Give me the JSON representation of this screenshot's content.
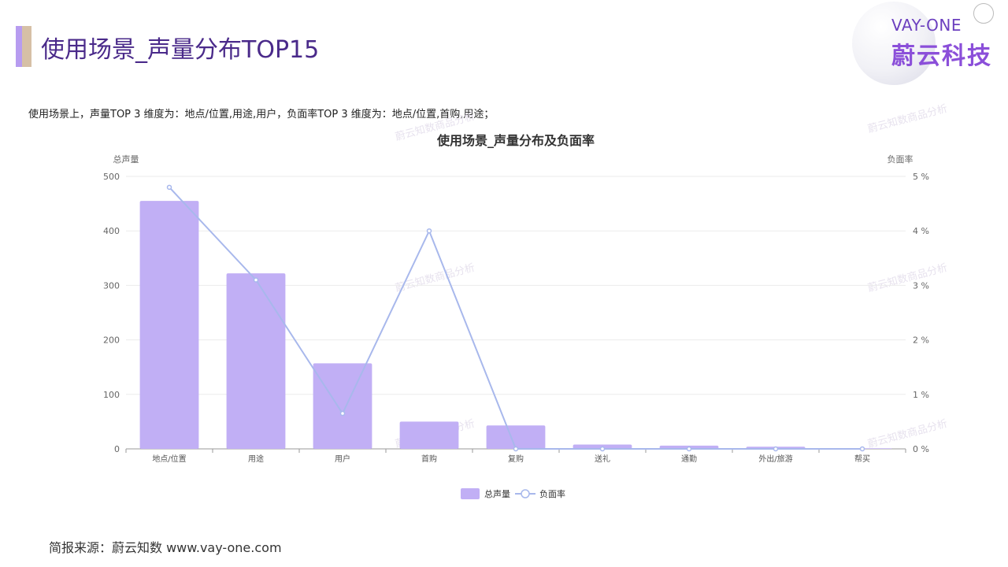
{
  "header": {
    "title": "使用场景_声量分布TOP15",
    "logo_en": "VAY-ONE",
    "logo_cn": "蔚云科技"
  },
  "summary": "使用场景上，声量TOP 3 维度为：地点/位置,用途,用户，负面率TOP 3 维度为：地点/位置,首购,用途；",
  "watermarks": [
    "蔚云知数商品分析",
    "蔚云知数商品分析",
    "蔚云知数商品分析",
    "蔚云知数商品分析",
    "蔚云知数商品分析",
    "蔚云知数商品分析",
    "蔚云知数商品分析"
  ],
  "footer": "简报来源：蔚云知数 www.vay-one.com",
  "colors": {
    "bar": "#c1aff5",
    "line": "#a8b8ec",
    "grid": "#ebebeb",
    "title_accent": "#b79cf0"
  },
  "chart_data": {
    "type": "bar",
    "title": "使用场景_声量分布及负面率",
    "ylabel_left": "总声量",
    "ylabel_right": "负面率",
    "ylim_left": [
      0,
      500
    ],
    "ylim_right": [
      0,
      5
    ],
    "yticks_left": [
      "0",
      "100",
      "200",
      "300",
      "400",
      "500"
    ],
    "yticks_right": [
      "0 %",
      "1 %",
      "2 %",
      "3 %",
      "4 %",
      "5 %"
    ],
    "categories": [
      "地点/位置",
      "用途",
      "用户",
      "首购",
      "复购",
      "送礼",
      "通勤",
      "外出/旅游",
      "帮买"
    ],
    "series": [
      {
        "name": "总声量",
        "type": "bar",
        "axis": "left",
        "values": [
          455,
          322,
          157,
          50,
          43,
          8,
          6,
          4,
          1
        ]
      },
      {
        "name": "负面率",
        "type": "line",
        "axis": "right",
        "values": [
          4.8,
          3.1,
          0.65,
          4.0,
          0,
          0,
          0,
          0,
          0
        ]
      }
    ],
    "legend": [
      "总声量",
      "负面率"
    ],
    "legend_position": "bottom-center",
    "grid": true
  }
}
